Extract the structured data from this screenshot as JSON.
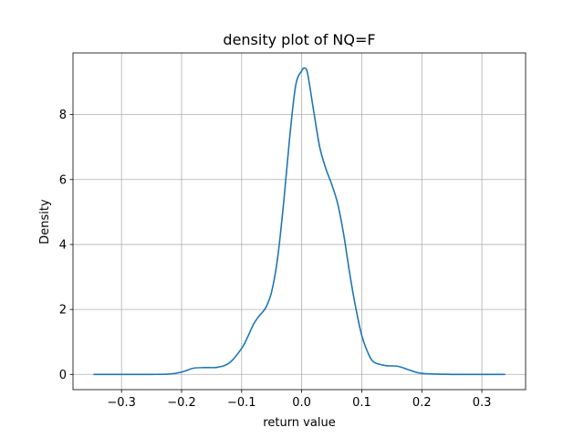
{
  "chart_data": {
    "type": "line",
    "title": "density plot of NQ=F",
    "xlabel": "return value",
    "ylabel": "Density",
    "xlim": [
      -0.3808,
      0.3728
    ],
    "ylim": [
      -0.47,
      9.9
    ],
    "grid": true,
    "xticks": [
      -0.3,
      -0.2,
      -0.1,
      0.0,
      0.1,
      0.2,
      0.3
    ],
    "xtick_labels": [
      "−0.3",
      "−0.2",
      "−0.1",
      "0.0",
      "0.1",
      "0.2",
      "0.3"
    ],
    "yticks": [
      0,
      2,
      4,
      6,
      8
    ],
    "ytick_labels": [
      "0",
      "2",
      "4",
      "6",
      "8"
    ],
    "series": [
      {
        "color": "#1f77b4",
        "x": [
          -0.346,
          -0.3,
          -0.25,
          -0.22,
          -0.2,
          -0.18,
          -0.16,
          -0.14,
          -0.12,
          -0.1,
          -0.09,
          -0.08,
          -0.07,
          -0.06,
          -0.05,
          -0.04,
          -0.03,
          -0.02,
          -0.01,
          0.0,
          0.005,
          0.01,
          0.02,
          0.03,
          0.04,
          0.05,
          0.06,
          0.07,
          0.08,
          0.09,
          0.1,
          0.11,
          0.12,
          0.14,
          0.16,
          0.18,
          0.2,
          0.25,
          0.3,
          0.338
        ],
        "y": [
          0.0,
          0.0,
          0.0,
          0.01,
          0.07,
          0.19,
          0.21,
          0.22,
          0.36,
          0.8,
          1.15,
          1.55,
          1.82,
          2.05,
          2.55,
          3.6,
          5.3,
          7.3,
          8.9,
          9.35,
          9.43,
          9.25,
          8.1,
          7.0,
          6.35,
          5.85,
          5.25,
          4.3,
          3.1,
          2.05,
          1.2,
          0.68,
          0.38,
          0.27,
          0.25,
          0.13,
          0.03,
          0.0,
          0.0,
          0.0
        ]
      }
    ]
  }
}
